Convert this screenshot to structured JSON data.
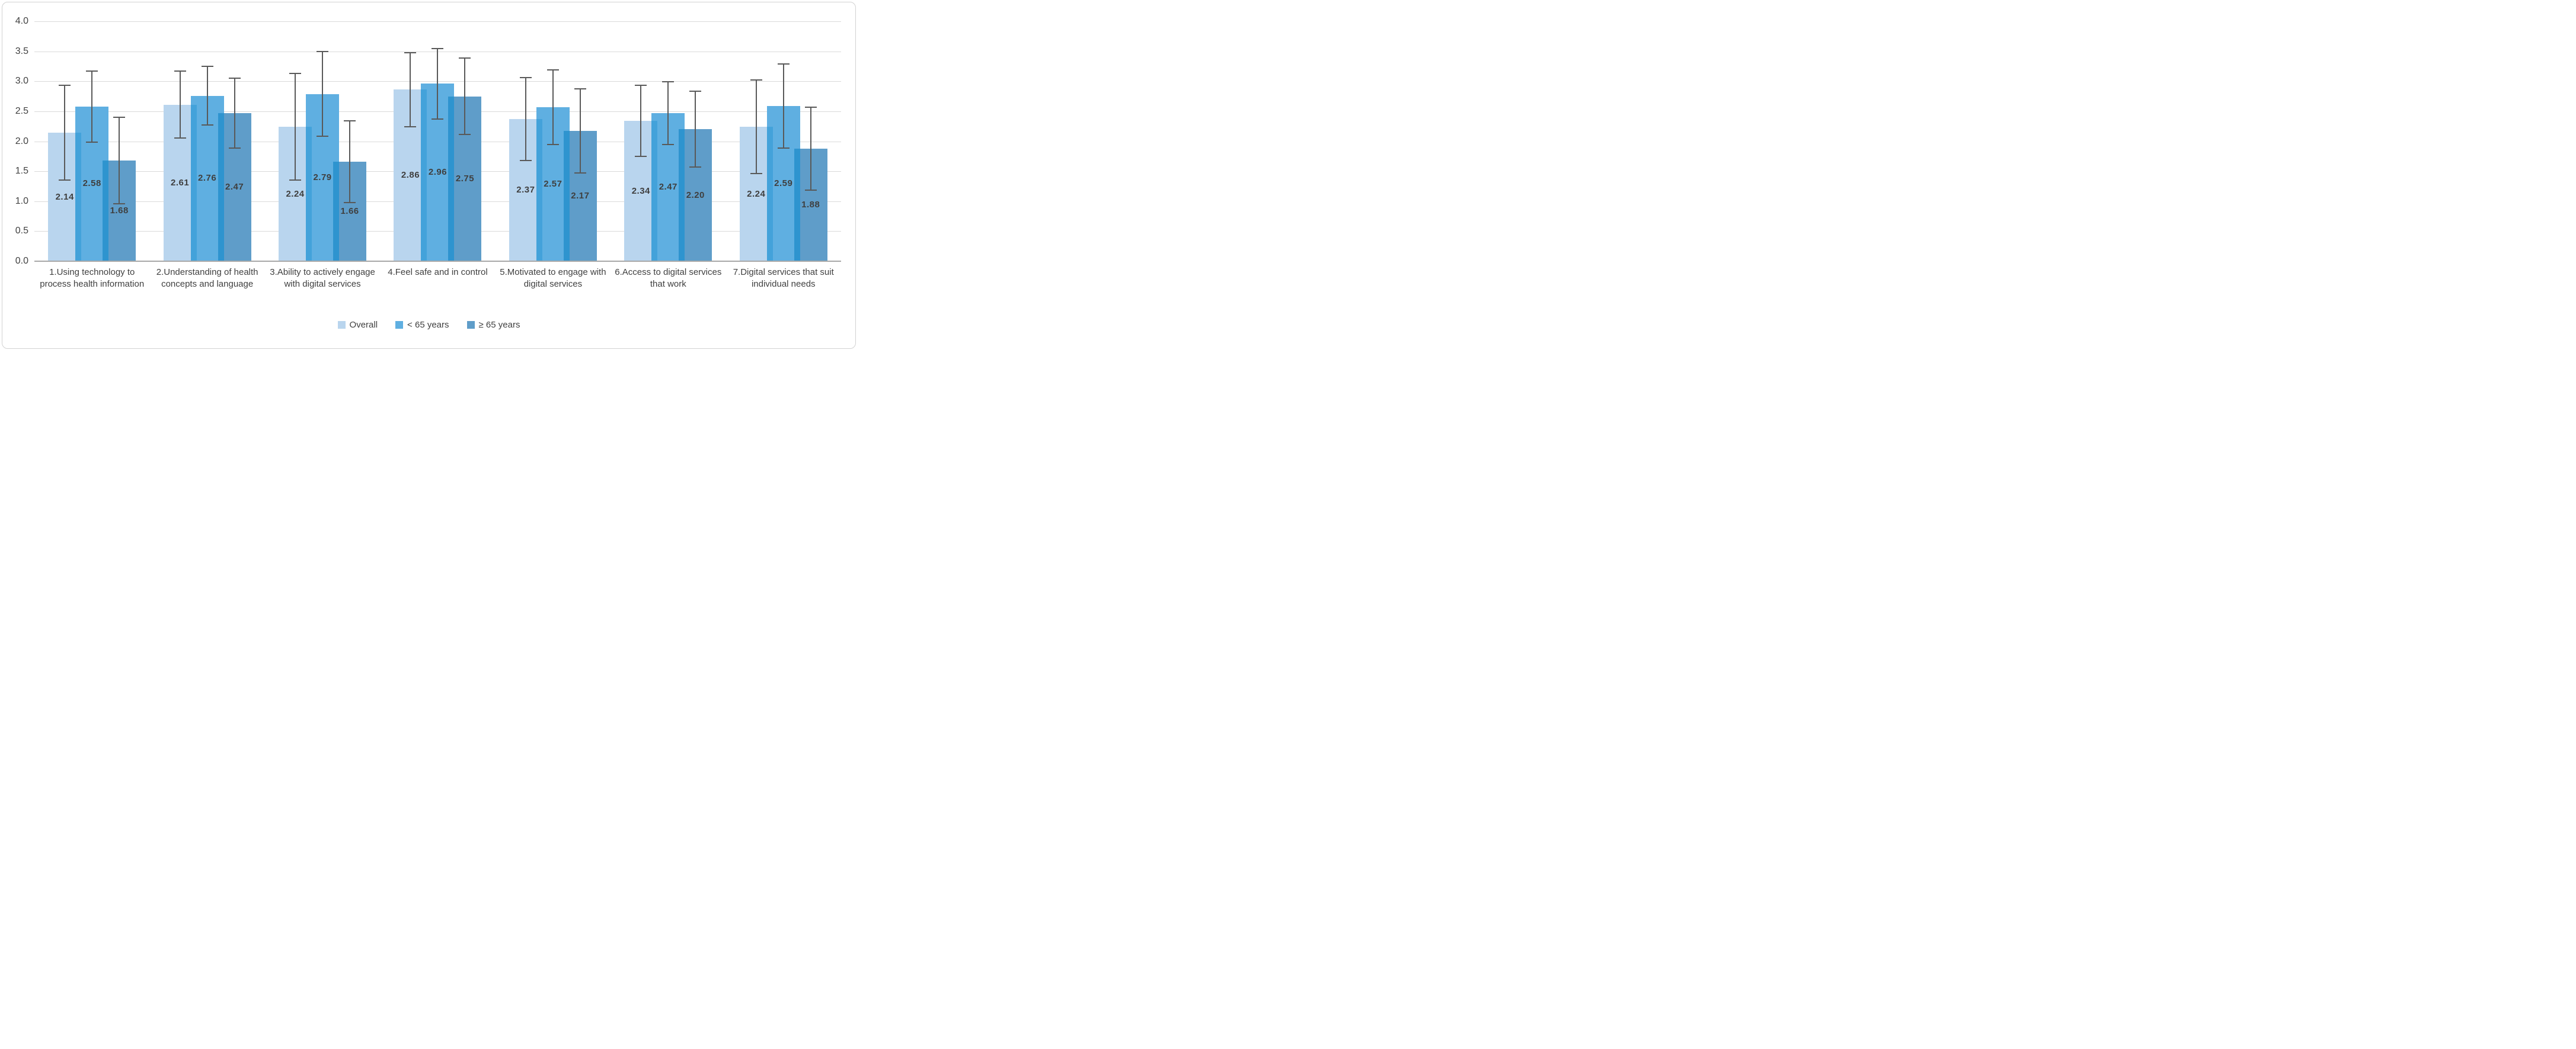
{
  "chart_data": {
    "type": "bar",
    "title": "",
    "xlabel": "",
    "ylabel": "",
    "categories": [
      "1.Using technology to process health information",
      "2.Understanding of health concepts and language",
      "3.Ability to actively engage with digital services",
      "4.Feel safe and in control",
      "5.Motivated to engage with digital services",
      "6.Access to digital services that work",
      "7.Digital services that suit individual needs"
    ],
    "series": [
      {
        "name": "Overall",
        "color": "#b9d5ee",
        "values": [
          2.14,
          2.61,
          2.24,
          2.86,
          2.37,
          2.34,
          2.24
        ],
        "errors_plus_minus": [
          0.8,
          0.57,
          0.9,
          0.63,
          0.7,
          0.6,
          0.79
        ]
      },
      {
        "name": "< 65 years",
        "color": "#5fafe1",
        "values": [
          2.58,
          2.76,
          2.79,
          2.96,
          2.57,
          2.47,
          2.59
        ],
        "errors_plus_minus": [
          0.6,
          0.5,
          0.72,
          0.6,
          0.63,
          0.53,
          0.71
        ]
      },
      {
        "name": "≥ 65 years",
        "color": "#5f9dc9",
        "values": [
          1.68,
          2.47,
          1.66,
          2.75,
          2.17,
          2.2,
          1.88
        ],
        "errors_plus_minus": [
          0.73,
          0.59,
          0.69,
          0.65,
          0.71,
          0.64,
          0.7
        ]
      }
    ],
    "data_labels": [
      [
        "2.14",
        "2.58",
        "1.68"
      ],
      [
        "2.61",
        "2.76",
        "2.47"
      ],
      [
        "2.24",
        "2.79",
        "1.66"
      ],
      [
        "2.86",
        "2.96",
        "2.75"
      ],
      [
        "2.37",
        "2.57",
        "2.17"
      ],
      [
        "2.34",
        "2.47",
        "2.20"
      ],
      [
        "2.24",
        "2.59",
        "1.88"
      ]
    ],
    "ylim": [
      0,
      4
    ],
    "ytick_step": 0.5,
    "yticks": [
      "4.0",
      "3.5",
      "3.0",
      "2.5",
      "2.0",
      "1.5",
      "1.0",
      "0.5",
      "0.0"
    ],
    "grid": true,
    "legend_position": "bottom",
    "bar_overlap_colors": [
      "#43a2da",
      "#2e94cf"
    ],
    "error_bar_color": "#595959",
    "gridline_color": "#dadada",
    "axis_line_color": "#a8a8a8",
    "text_color": "#404040",
    "data_label_color": "#3f3f3f"
  }
}
